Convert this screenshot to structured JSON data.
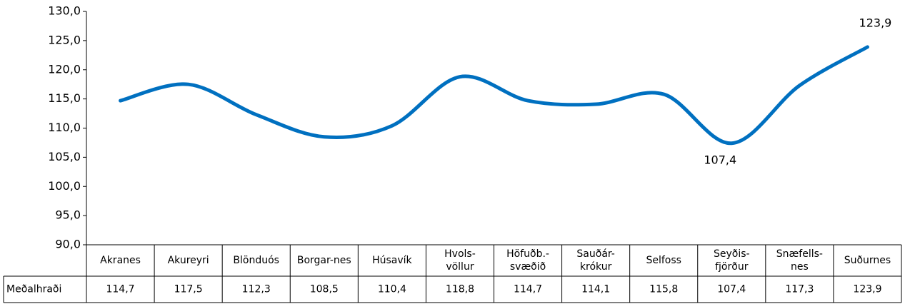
{
  "chart_data": {
    "type": "line",
    "categories": [
      "Akranes",
      "Akureyri",
      "Blönduós",
      "Borgar-nes",
      "Húsavík",
      "Hvols-\nvöllur",
      "Höfuðb.-\nsvæðið",
      "Sauðár-\nkrókur",
      "Selfoss",
      "Seyðis-\nfjörður",
      "Snæfells-\nnes",
      "Suðurnes"
    ],
    "series": [
      {
        "name": "Meðalhraði",
        "color": "#0070c0",
        "values": [
          114.7,
          117.5,
          112.3,
          108.5,
          110.4,
          118.8,
          114.7,
          114.1,
          115.8,
          107.4,
          117.3,
          123.9
        ],
        "value_labels": [
          "114,7",
          "117,5",
          "112,3",
          "108,5",
          "110,4",
          "118,8",
          "114,7",
          "114,1",
          "115,8",
          "107,4",
          "117,3",
          "123,9"
        ]
      }
    ],
    "ylim": [
      90,
      130
    ],
    "yticks": [
      {
        "value": 90,
        "label": "90,0"
      },
      {
        "value": 95,
        "label": "95,0"
      },
      {
        "value": 100,
        "label": "100,0"
      },
      {
        "value": 105,
        "label": "105,0"
      },
      {
        "value": 110,
        "label": "110,0"
      },
      {
        "value": 115,
        "label": "115,0"
      },
      {
        "value": 120,
        "label": "120,0"
      },
      {
        "value": 125,
        "label": "125,0"
      },
      {
        "value": 130,
        "label": "130,0"
      }
    ]
  }
}
